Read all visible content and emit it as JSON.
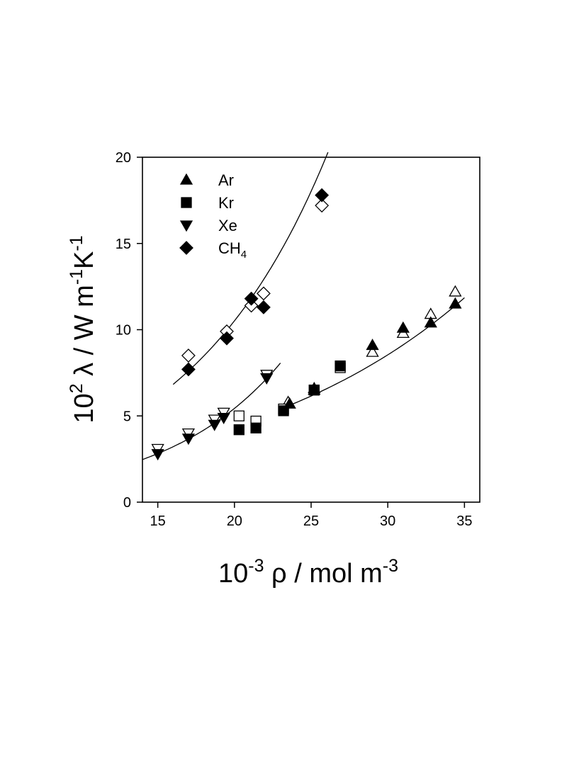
{
  "chart_data": {
    "type": "scatter",
    "xlabel": {
      "base": "10",
      "base_sup": "-3",
      "text": " ρ / mol m",
      "unit_sup": "-3"
    },
    "ylabel": {
      "base": "10",
      "base_sup": "2",
      "text": " λ / W m",
      "sup1": "-1",
      "mid": "K",
      "sup2": "-1"
    },
    "xlim": [
      14,
      36
    ],
    "ylim": [
      0,
      20
    ],
    "xticks": [
      15,
      20,
      25,
      30,
      35
    ],
    "yticks": [
      0,
      5,
      10,
      15,
      20
    ],
    "grid": false,
    "legend_position": "top-left",
    "legend": [
      {
        "label": "Ar",
        "marker": "triangle-up"
      },
      {
        "label": "Kr",
        "marker": "square"
      },
      {
        "label": "Xe",
        "marker": "triangle-down"
      },
      {
        "label": "CH",
        "sub": "4",
        "marker": "diamond"
      }
    ],
    "series": [
      {
        "name": "Ar",
        "marker": "triangle-up",
        "filled": [
          [
            23.6,
            5.7
          ],
          [
            25.2,
            6.5
          ],
          [
            29.0,
            9.1
          ],
          [
            31.0,
            10.1
          ],
          [
            32.8,
            10.4
          ],
          [
            34.4,
            11.5
          ]
        ],
        "open": [
          [
            23.5,
            5.8
          ],
          [
            25.2,
            6.6
          ],
          [
            29.0,
            8.7
          ],
          [
            31.0,
            9.8
          ],
          [
            32.8,
            10.9
          ],
          [
            34.4,
            12.2
          ]
        ]
      },
      {
        "name": "Kr",
        "marker": "square",
        "filled": [
          [
            20.3,
            4.2
          ],
          [
            21.4,
            4.3
          ],
          [
            23.2,
            5.3
          ],
          [
            25.2,
            6.5
          ],
          [
            26.9,
            7.9
          ]
        ],
        "open": [
          [
            20.3,
            5.0
          ],
          [
            21.4,
            4.7
          ],
          [
            23.2,
            5.4
          ],
          [
            25.2,
            6.5
          ],
          [
            26.9,
            7.8
          ]
        ]
      },
      {
        "name": "Xe",
        "marker": "triangle-down",
        "filled": [
          [
            15.0,
            2.8
          ],
          [
            17.0,
            3.7
          ],
          [
            18.7,
            4.5
          ],
          [
            19.3,
            4.9
          ],
          [
            22.1,
            7.2
          ]
        ],
        "open": [
          [
            15.0,
            3.1
          ],
          [
            17.0,
            4.0
          ],
          [
            18.7,
            4.8
          ],
          [
            19.3,
            5.2
          ],
          [
            22.1,
            7.4
          ]
        ]
      },
      {
        "name": "CH4",
        "marker": "diamond",
        "filled": [
          [
            17.0,
            7.7
          ],
          [
            19.5,
            9.5
          ],
          [
            21.1,
            11.8
          ],
          [
            21.9,
            11.3
          ],
          [
            25.7,
            17.8
          ]
        ],
        "open": [
          [
            17.0,
            8.5
          ],
          [
            19.5,
            9.9
          ],
          [
            21.1,
            11.4
          ],
          [
            21.9,
            12.1
          ],
          [
            25.7,
            17.2
          ]
        ]
      }
    ],
    "fits": [
      {
        "name": "CH4",
        "x": [
          16.0,
          26.1
        ],
        "a": 6.83,
        "b": 0.1078,
        "x0": 16
      },
      {
        "name": "Xe",
        "x": [
          14.0,
          23.0
        ],
        "a": 2.47,
        "b": 0.1315,
        "x0": 14
      },
      {
        "name": "Ar-Kr",
        "x": [
          23.0,
          35.0
        ],
        "a": 5.4,
        "b": 0.0655,
        "x0": 23
      }
    ]
  }
}
